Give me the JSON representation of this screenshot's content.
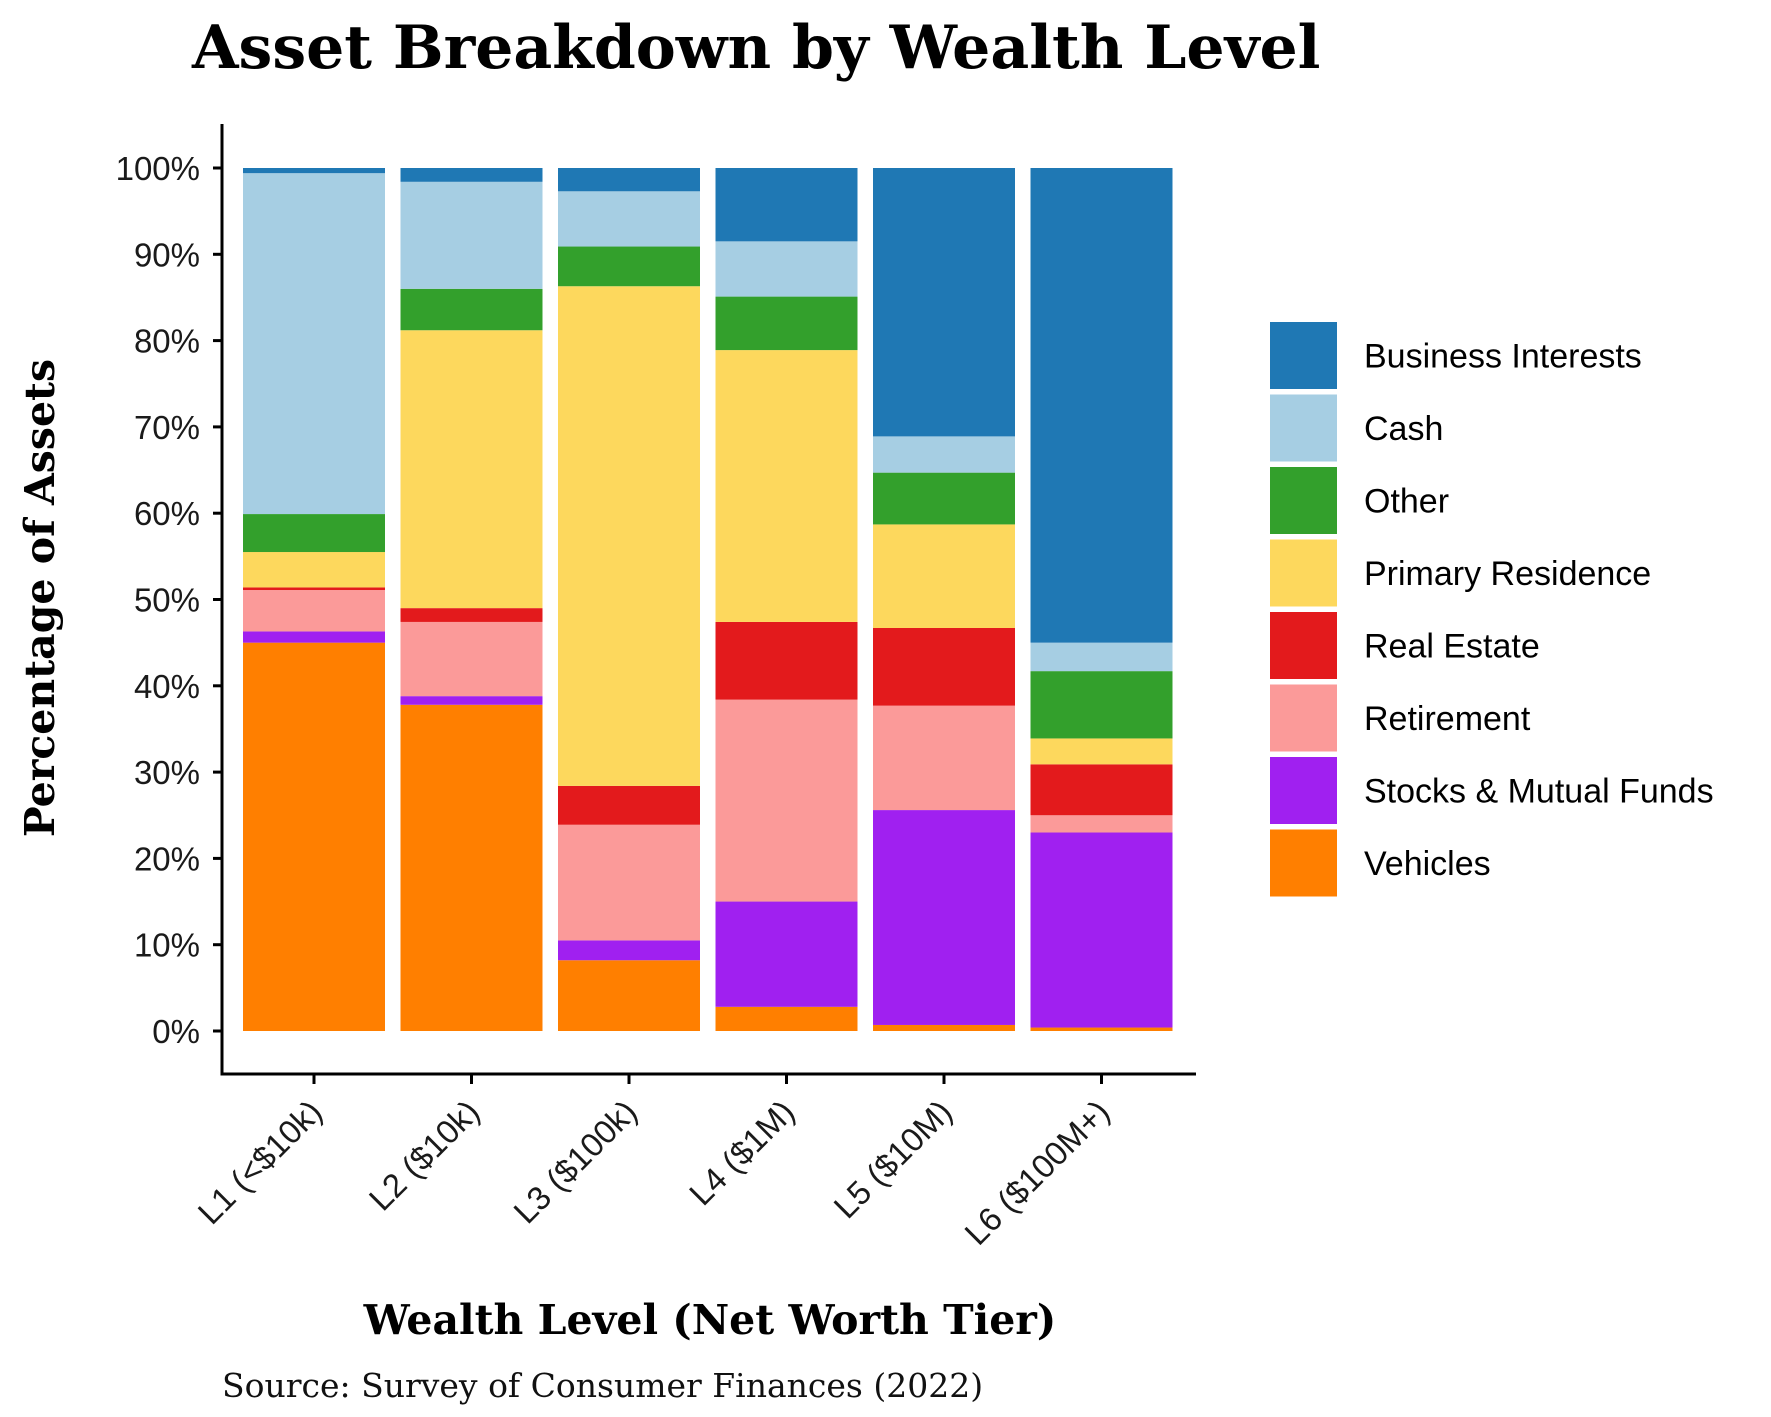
{
  "chart_data": {
    "type": "bar",
    "stacked": true,
    "title": "Asset Breakdown by Wealth Level",
    "xlabel": "Wealth Level (Net Worth Tier)",
    "ylabel": "Percentage of Assets",
    "source": "Source: Survey of Consumer Finances (2022)",
    "ylim": [
      0,
      100
    ],
    "yticks": [
      "0%",
      "10%",
      "20%",
      "30%",
      "40%",
      "50%",
      "60%",
      "70%",
      "80%",
      "90%",
      "100%"
    ],
    "categories": [
      "L1 (<$10k)",
      "L2 ($10k)",
      "L3 ($100k)",
      "L4 ($1M)",
      "L5 ($10M)",
      "L6 ($100M+)"
    ],
    "grid": false,
    "legend_position": "right",
    "series": [
      {
        "name": "Vehicles",
        "color": "#FF7F00",
        "values": [
          45.0,
          37.8,
          8.2,
          2.8,
          0.7,
          0.4
        ]
      },
      {
        "name": "Stocks & Mutual Funds",
        "color": "#A020F0",
        "values": [
          1.3,
          1.0,
          2.3,
          12.2,
          24.9,
          22.6
        ]
      },
      {
        "name": "Retirement",
        "color": "#FB9A99",
        "values": [
          4.8,
          8.6,
          13.4,
          23.4,
          12.1,
          2.0
        ]
      },
      {
        "name": "Real Estate",
        "color": "#E31A1C",
        "values": [
          0.3,
          1.6,
          4.5,
          9.0,
          9.0,
          5.9
        ]
      },
      {
        "name": "Primary Residence",
        "color": "#FDD85D",
        "values": [
          4.1,
          32.2,
          57.9,
          31.5,
          12.0,
          3.0
        ]
      },
      {
        "name": "Other",
        "color": "#33A02C",
        "values": [
          4.4,
          4.8,
          4.6,
          6.2,
          6.0,
          7.8
        ]
      },
      {
        "name": "Cash",
        "color": "#A6CEE3",
        "values": [
          39.5,
          12.4,
          6.4,
          6.4,
          4.2,
          3.3
        ]
      },
      {
        "name": "Business Interests",
        "color": "#1F78B4",
        "values": [
          0.6,
          1.6,
          2.7,
          8.5,
          31.1,
          55.0
        ]
      }
    ],
    "legend_order": [
      "Business Interests",
      "Cash",
      "Other",
      "Primary Residence",
      "Real Estate",
      "Retirement",
      "Stocks & Mutual Funds",
      "Vehicles"
    ]
  }
}
